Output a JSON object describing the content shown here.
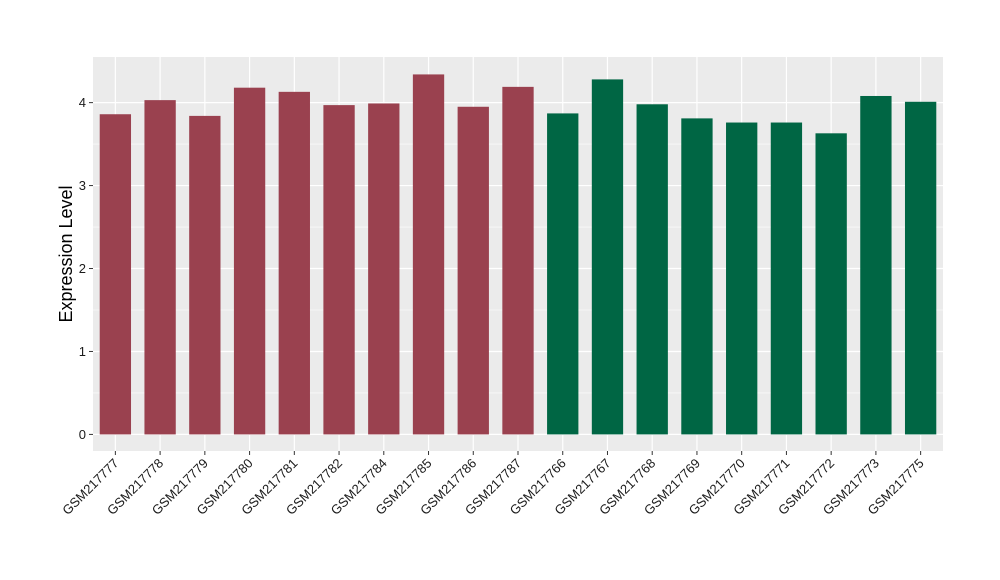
{
  "chart_data": {
    "type": "bar",
    "title": "",
    "xlabel": "",
    "ylabel": "Expression Level",
    "ylim": [
      -0.2,
      4.55
    ],
    "yticks": [
      0,
      1,
      2,
      3,
      4
    ],
    "ytick_labels": [
      "0",
      "1",
      "2",
      "3",
      "4"
    ],
    "grid": true,
    "legend": "none",
    "categories": [
      "GSM217777",
      "GSM217778",
      "GSM217779",
      "GSM217780",
      "GSM217781",
      "GSM217782",
      "GSM217784",
      "GSM217785",
      "GSM217786",
      "GSM217787",
      "GSM217766",
      "GSM217767",
      "GSM217768",
      "GSM217769",
      "GSM217770",
      "GSM217771",
      "GSM217772",
      "GSM217773",
      "GSM217775"
    ],
    "values": [
      3.86,
      4.03,
      3.84,
      4.18,
      4.13,
      3.97,
      3.99,
      4.34,
      3.95,
      4.19,
      3.87,
      4.28,
      3.98,
      3.81,
      3.76,
      3.76,
      3.63,
      4.08,
      4.01
    ],
    "bar_colors": [
      "#9a414f",
      "#9a414f",
      "#9a414f",
      "#9a414f",
      "#9a414f",
      "#9a414f",
      "#9a414f",
      "#9a414f",
      "#9a414f",
      "#9a414f",
      "#006644",
      "#006644",
      "#006644",
      "#006644",
      "#006644",
      "#006644",
      "#006644",
      "#006644",
      "#006644"
    ],
    "panel_background": "#ebebeb",
    "grid_color": "#ffffff"
  }
}
